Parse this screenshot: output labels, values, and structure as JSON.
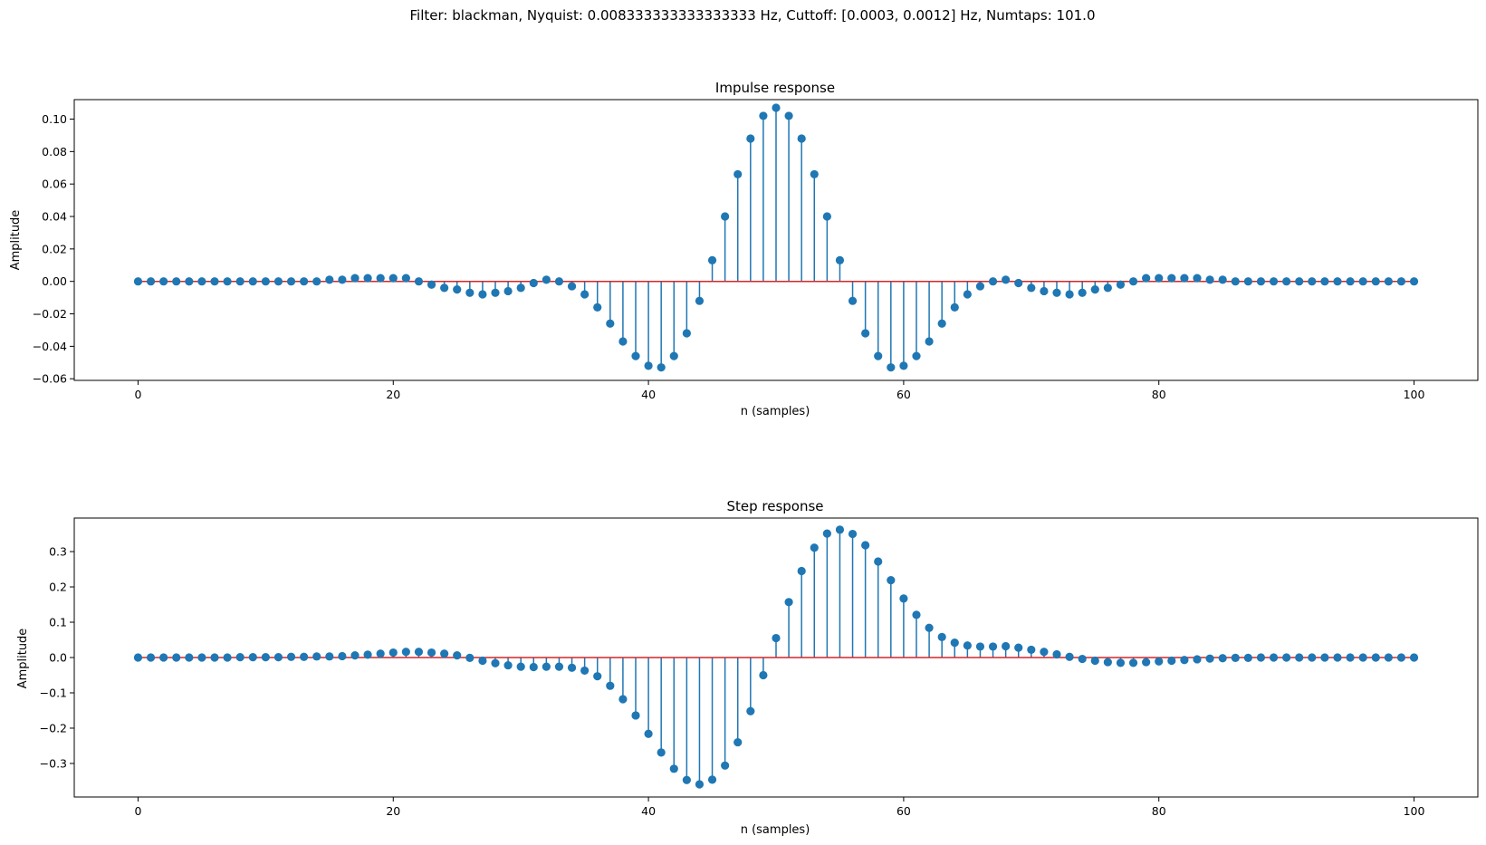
{
  "suptitle": "Filter: blackman, Nyquist: 0.008333333333333333 Hz, Cuttoff: [0.0003, 0.0012] Hz, Numtaps: 101.0",
  "colors": {
    "stem": "#1f77b4",
    "baseline": "#d62728",
    "axes": "#000000"
  },
  "chart_data": [
    {
      "type": "stem",
      "title": "Impulse response",
      "xlabel": "n (samples)",
      "ylabel": "Amplitude",
      "xlim": [
        -5,
        105
      ],
      "ylim": [
        -0.061,
        0.112
      ],
      "xticks": [
        0,
        20,
        40,
        60,
        80,
        100
      ],
      "xtick_labels": [
        "0",
        "20",
        "40",
        "60",
        "80",
        "100"
      ],
      "yticks": [
        -0.06,
        -0.04,
        -0.02,
        0.0,
        0.02,
        0.04,
        0.06,
        0.08,
        0.1
      ],
      "ytick_labels": [
        "−0.06",
        "−0.04",
        "−0.02",
        "0.00",
        "0.02",
        "0.04",
        "0.06",
        "0.08",
        "0.10"
      ],
      "x": [
        0,
        1,
        2,
        3,
        4,
        5,
        6,
        7,
        8,
        9,
        10,
        11,
        12,
        13,
        14,
        15,
        16,
        17,
        18,
        19,
        20,
        21,
        22,
        23,
        24,
        25,
        26,
        27,
        28,
        29,
        30,
        31,
        32,
        33,
        34,
        35,
        36,
        37,
        38,
        39,
        40,
        41,
        42,
        43,
        44,
        45,
        46,
        47,
        48,
        49,
        50,
        51,
        52,
        53,
        54,
        55,
        56,
        57,
        58,
        59,
        60,
        61,
        62,
        63,
        64,
        65,
        66,
        67,
        68,
        69,
        70,
        71,
        72,
        73,
        74,
        75,
        76,
        77,
        78,
        79,
        80,
        81,
        82,
        83,
        84,
        85,
        86,
        87,
        88,
        89,
        90,
        91,
        92,
        93,
        94,
        95,
        96,
        97,
        98,
        99,
        100
      ],
      "values": [
        0.0,
        0.0,
        0.0,
        0.0,
        0.0,
        0.0,
        0.0,
        0.0,
        0.0,
        0.0,
        0.0,
        0.0,
        0.0,
        0.0,
        0.0,
        0.001,
        0.001,
        0.002,
        0.002,
        0.002,
        0.002,
        0.002,
        0.0,
        -0.002,
        -0.004,
        -0.005,
        -0.007,
        -0.008,
        -0.007,
        -0.006,
        -0.004,
        -0.001,
        0.001,
        0.0,
        -0.003,
        -0.008,
        -0.016,
        -0.026,
        -0.037,
        -0.046,
        -0.052,
        -0.053,
        -0.046,
        -0.032,
        -0.012,
        0.013,
        0.04,
        0.066,
        0.088,
        0.102,
        0.107,
        0.102,
        0.088,
        0.066,
        0.04,
        0.013,
        -0.012,
        -0.032,
        -0.046,
        -0.053,
        -0.052,
        -0.046,
        -0.037,
        -0.026,
        -0.016,
        -0.008,
        -0.003,
        0.0,
        0.001,
        -0.001,
        -0.004,
        -0.006,
        -0.007,
        -0.008,
        -0.007,
        -0.005,
        -0.004,
        -0.002,
        0.0,
        0.002,
        0.002,
        0.002,
        0.002,
        0.002,
        0.001,
        0.001,
        0.0,
        0.0,
        0.0,
        0.0,
        0.0,
        0.0,
        0.0,
        0.0,
        0.0,
        0.0,
        0.0,
        0.0,
        0.0,
        0.0,
        0.0
      ]
    },
    {
      "type": "stem",
      "title": "Step response",
      "xlabel": "n (samples)",
      "ylabel": "Amplitude",
      "xlim": [
        -5,
        105
      ],
      "ylim": [
        -0.395,
        0.395
      ],
      "xticks": [
        0,
        20,
        40,
        60,
        80,
        100
      ],
      "xtick_labels": [
        "0",
        "20",
        "40",
        "60",
        "80",
        "100"
      ],
      "yticks": [
        -0.3,
        -0.2,
        -0.1,
        0.0,
        0.1,
        0.2,
        0.3
      ],
      "ytick_labels": [
        "−0.3",
        "−0.2",
        "−0.1",
        "0.0",
        "0.1",
        "0.2",
        "0.3"
      ],
      "x": [
        0,
        1,
        2,
        3,
        4,
        5,
        6,
        7,
        8,
        9,
        10,
        11,
        12,
        13,
        14,
        15,
        16,
        17,
        18,
        19,
        20,
        21,
        22,
        23,
        24,
        25,
        26,
        27,
        28,
        29,
        30,
        31,
        32,
        33,
        34,
        35,
        36,
        37,
        38,
        39,
        40,
        41,
        42,
        43,
        44,
        45,
        46,
        47,
        48,
        49,
        50,
        51,
        52,
        53,
        54,
        55,
        56,
        57,
        58,
        59,
        60,
        61,
        62,
        63,
        64,
        65,
        66,
        67,
        68,
        69,
        70,
        71,
        72,
        73,
        74,
        75,
        76,
        77,
        78,
        79,
        80,
        81,
        82,
        83,
        84,
        85,
        86,
        87,
        88,
        89,
        90,
        91,
        92,
        93,
        94,
        95,
        96,
        97,
        98,
        99,
        100
      ],
      "values": [
        0.0,
        0.0,
        0.0,
        0.0,
        0.0,
        0.0,
        0.0,
        0.0,
        0.001,
        0.001,
        0.001,
        0.001,
        0.002,
        0.002,
        0.003,
        0.003,
        0.004,
        0.006,
        0.008,
        0.011,
        0.014,
        0.016,
        0.016,
        0.014,
        0.011,
        0.006,
        -0.001,
        -0.009,
        -0.016,
        -0.022,
        -0.026,
        -0.027,
        -0.026,
        -0.026,
        -0.029,
        -0.037,
        -0.053,
        -0.08,
        -0.118,
        -0.164,
        -0.216,
        -0.269,
        -0.315,
        -0.347,
        -0.359,
        -0.346,
        -0.306,
        -0.24,
        -0.152,
        -0.05,
        0.055,
        0.157,
        0.245,
        0.311,
        0.351,
        0.362,
        0.35,
        0.318,
        0.272,
        0.219,
        0.167,
        0.121,
        0.084,
        0.058,
        0.042,
        0.034,
        0.031,
        0.031,
        0.032,
        0.028,
        0.022,
        0.016,
        0.009,
        0.002,
        -0.004,
        -0.009,
        -0.013,
        -0.015,
        -0.015,
        -0.013,
        -0.011,
        -0.009,
        -0.007,
        -0.005,
        -0.003,
        -0.002,
        -0.001,
        -0.001,
        0.0,
        0.0,
        0.0,
        0.0,
        0.0,
        0.0,
        0.0,
        0.0,
        0.0,
        0.0,
        0.0,
        0.0,
        0.0
      ]
    }
  ]
}
